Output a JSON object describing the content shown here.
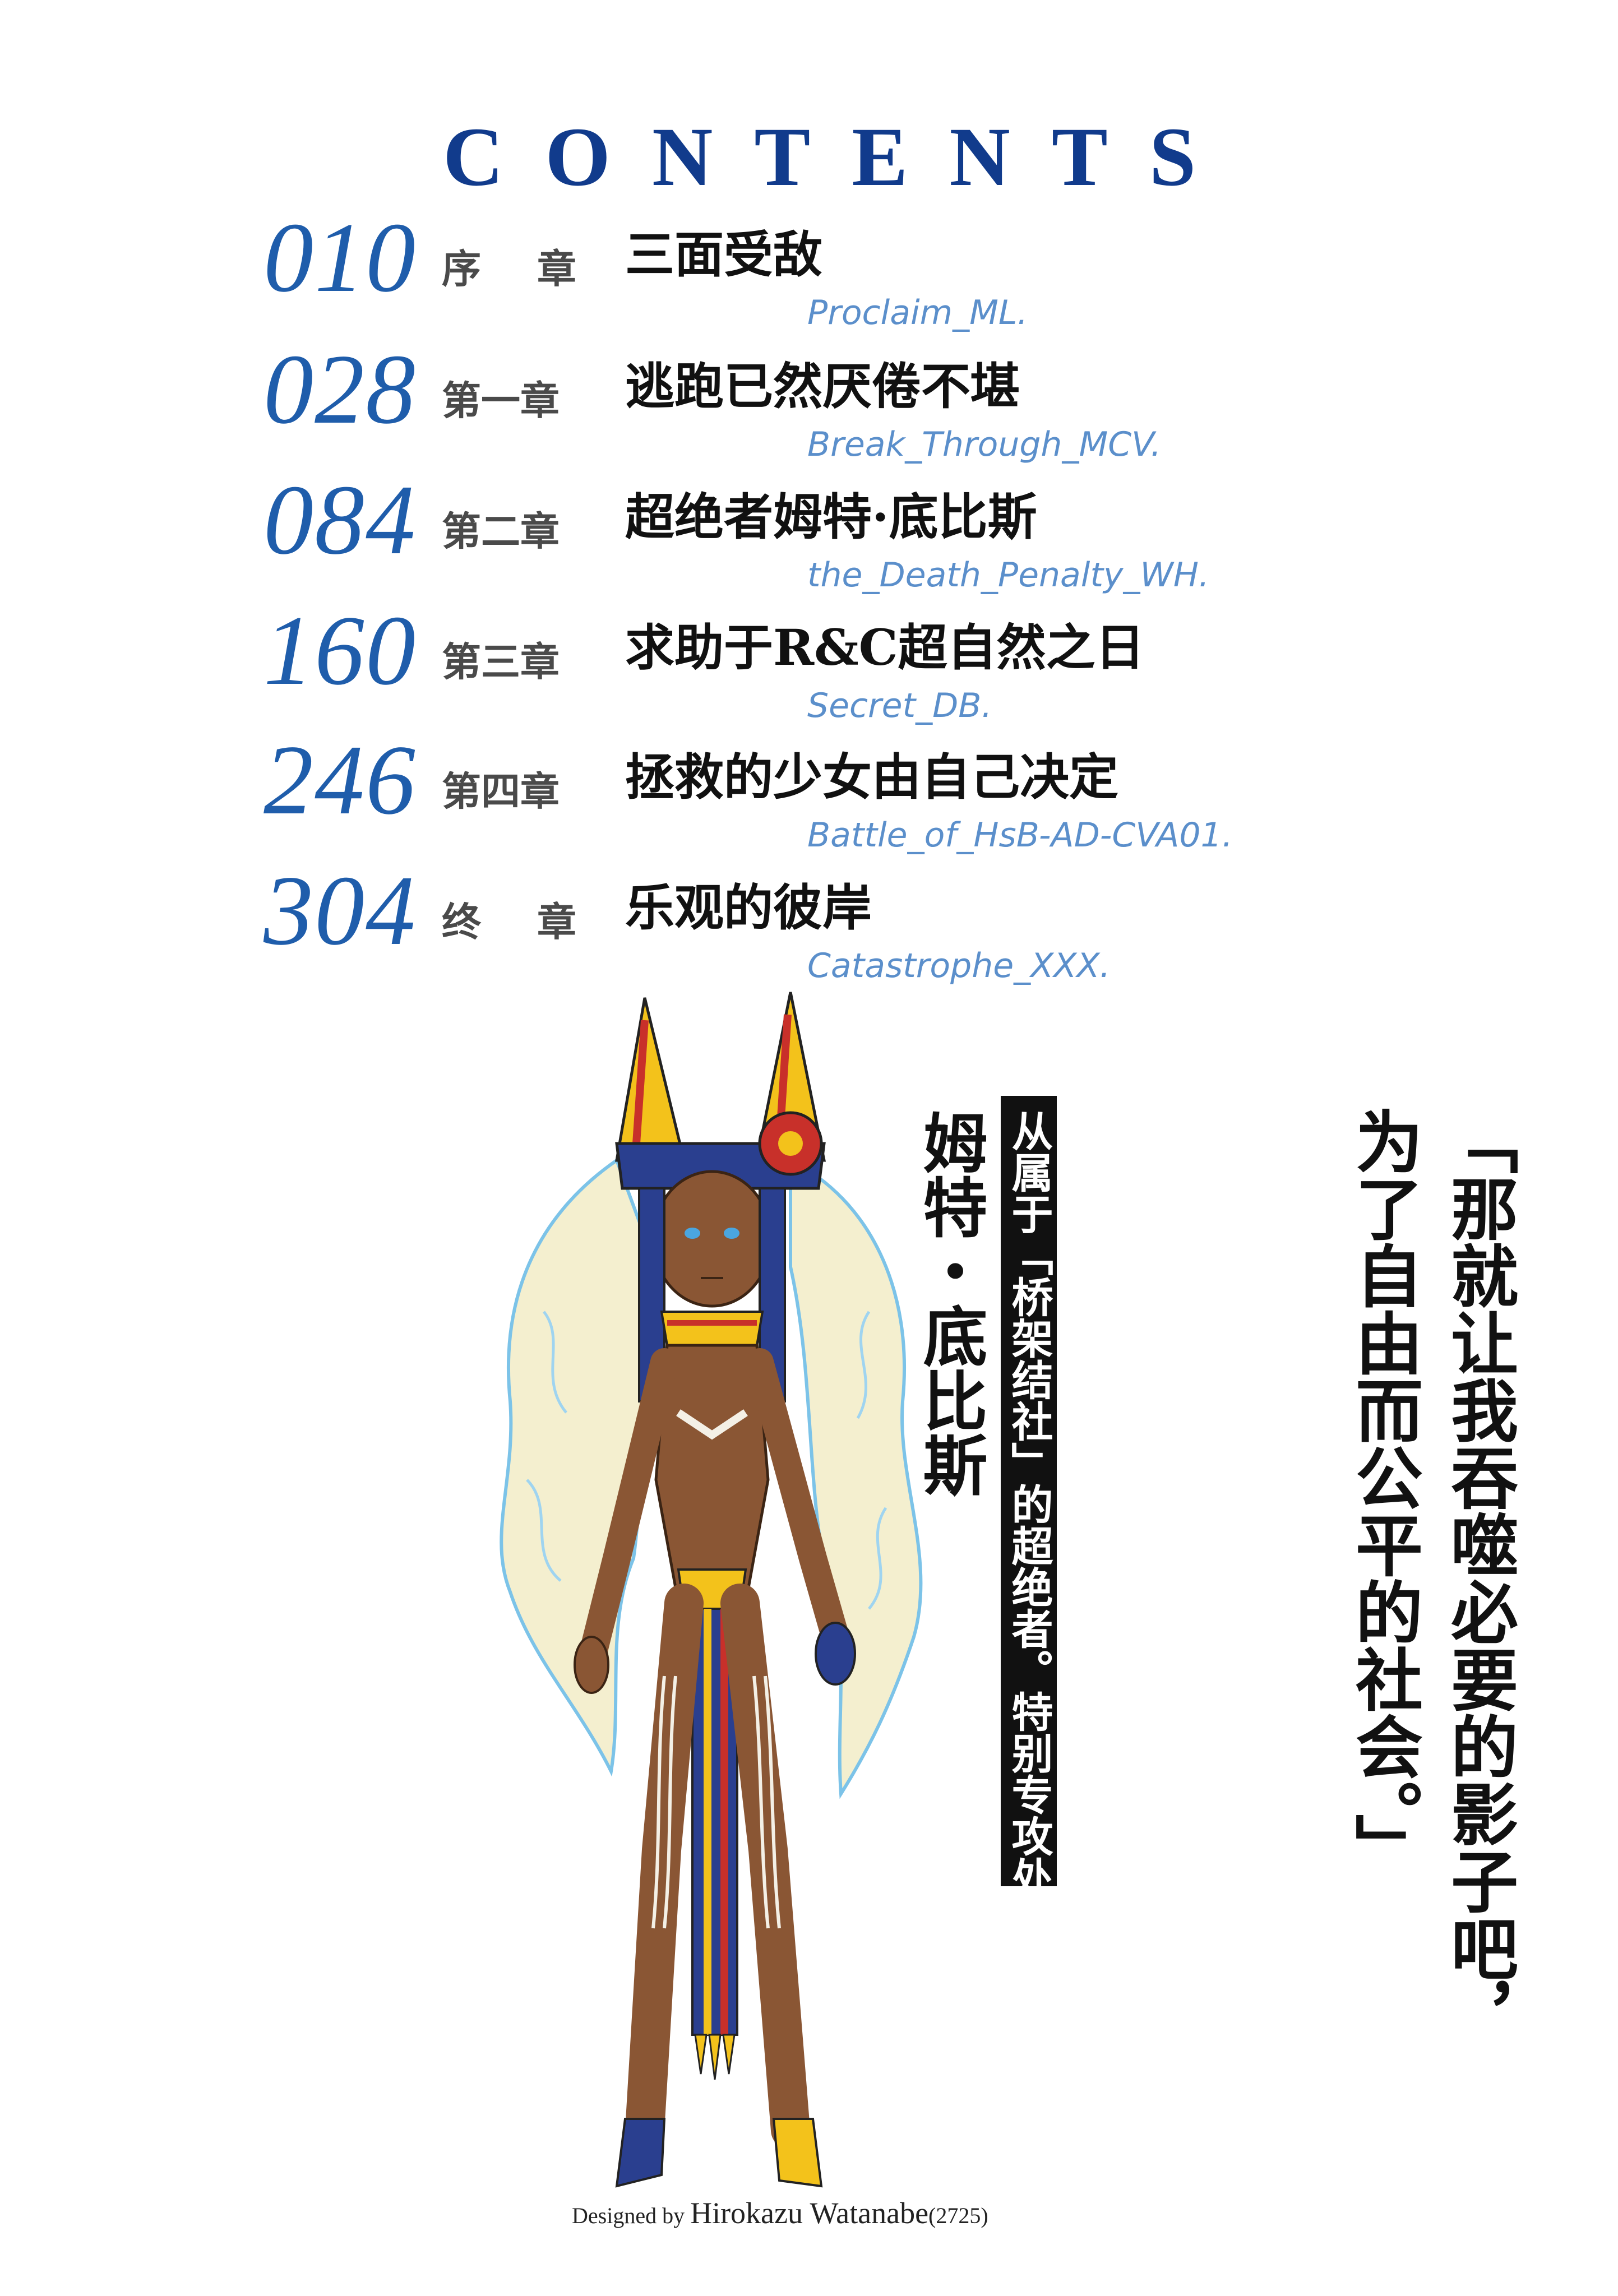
{
  "header": {
    "title": "CONTENTS"
  },
  "toc": [
    {
      "page": "010",
      "label": "序 章",
      "title": "三面受敌",
      "subtitle": "Proclaim_ML."
    },
    {
      "page": "028",
      "label": "第一章",
      "title": "逃跑已然厌倦不堪",
      "subtitle": "Break_Through_MCV."
    },
    {
      "page": "084",
      "label": "第二章",
      "title": "超绝者姆特·底比斯",
      "subtitle": "the_Death_Penalty_WH."
    },
    {
      "page": "160",
      "label": "第三章",
      "title": "求助于R&C超自然之日",
      "subtitle": "Secret_DB."
    },
    {
      "page": "246",
      "label": "第四章",
      "title": "拯救的少女由自己决定",
      "subtitle": "Battle_of_HsB-AD-CVA01."
    },
    {
      "page": "304",
      "label": "终 章",
      "title": "乐观的彼岸",
      "subtitle": "Catastrophe_XXX."
    }
  ],
  "quote": {
    "line1": "「那就让我吞噬必要的影子吧，",
    "line2": "为了自由而公平的社会。」"
  },
  "character": {
    "affiliation": "从属于「桥架结社」的超绝者。特别专攻处刑",
    "name": "姆特・底比斯"
  },
  "credit": {
    "prefix": "Designed by",
    "name": "Hirokazu Watanabe",
    "suffix": "(2725)"
  },
  "colors": {
    "title_blue": "#113b8c",
    "page_blue": "#1f5dab",
    "subtitle_blue": "#5b8fcb"
  },
  "illustration": {
    "icon": "character-illustration-icon"
  }
}
